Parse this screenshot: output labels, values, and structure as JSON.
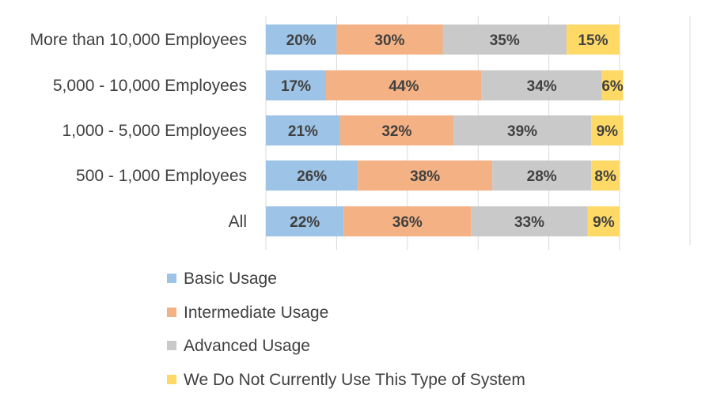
{
  "chart_data": {
    "type": "bar",
    "orientation": "horizontal",
    "stacked": true,
    "title": "",
    "xlabel": "",
    "ylabel": "",
    "xlim": [
      0,
      100
    ],
    "grid": true,
    "legend_position": "bottom",
    "categories": [
      "More than 10,000 Employees",
      "5,000 - 10,000 Employees",
      "1,000 - 5,000 Employees",
      "500 - 1,000 Employees",
      "All"
    ],
    "series": [
      {
        "name": "Basic Usage",
        "color": "#9dc3e6",
        "values": [
          20,
          17,
          21,
          26,
          22
        ],
        "labels": [
          "20%",
          "17%",
          "21%",
          "26%",
          "22%"
        ]
      },
      {
        "name": "Intermediate Usage",
        "color": "#f4b183",
        "values": [
          30,
          44,
          32,
          38,
          36
        ],
        "labels": [
          "30%",
          "44%",
          "32%",
          "38%",
          "36%"
        ]
      },
      {
        "name": "Advanced Usage",
        "color": "#c9c9c9",
        "values": [
          35,
          34,
          39,
          28,
          33
        ],
        "labels": [
          "35%",
          "34%",
          "39%",
          "28%",
          "33%"
        ]
      },
      {
        "name": "We Do Not Currently Use This Type of System",
        "color": "#ffd966",
        "values": [
          15,
          6,
          9,
          8,
          9
        ],
        "labels": [
          "15%",
          "6%",
          "9%",
          "8%",
          "9%"
        ]
      }
    ]
  }
}
